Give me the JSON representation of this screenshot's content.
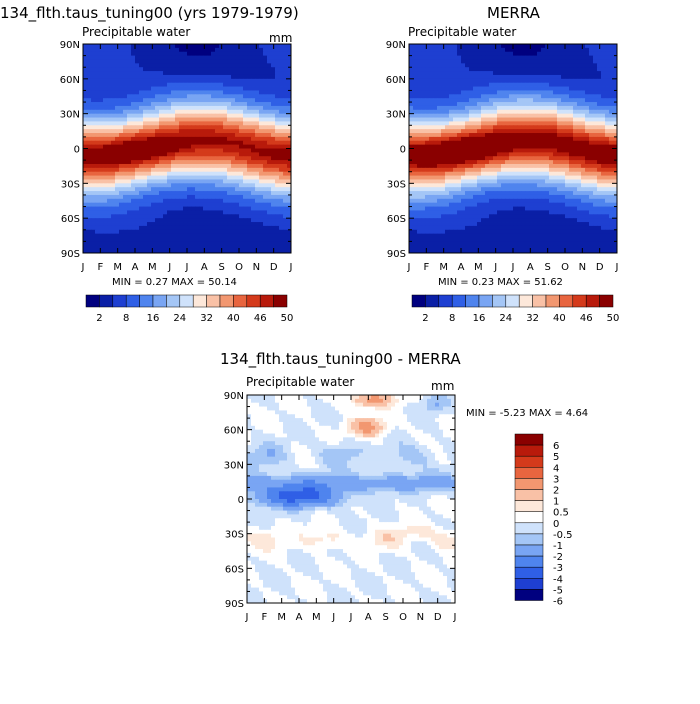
{
  "chart_data": [
    {
      "type": "heatmap",
      "id": "model",
      "title": "134_flth.taus_tuning00 (yrs 1979-1979)",
      "variable": "Precipitable water",
      "units": "mm",
      "xlabels": [
        "J",
        "F",
        "M",
        "A",
        "M",
        "J",
        "J",
        "A",
        "S",
        "O",
        "N",
        "D",
        "J"
      ],
      "ylabels": [
        "90N",
        "60N",
        "30N",
        "0",
        "30S",
        "60S",
        "90S"
      ],
      "stats": "MIN =    0.27 MAX =   50.14",
      "min": 0.27,
      "max": 50.14,
      "colorbar_levels": [
        "2",
        "8",
        "16",
        "24",
        "32",
        "40",
        "46",
        "50"
      ]
    },
    {
      "type": "heatmap",
      "id": "obs",
      "title": "MERRA",
      "variable": "Precipitable water",
      "units": "mm",
      "xlabels": [
        "J",
        "F",
        "M",
        "A",
        "M",
        "J",
        "J",
        "A",
        "S",
        "O",
        "N",
        "D",
        "J"
      ],
      "ylabels": [
        "90N",
        "60N",
        "30N",
        "0",
        "30S",
        "60S",
        "90S"
      ],
      "stats": "MIN =    0.23 MAX =   51.62",
      "min": 0.23,
      "max": 51.62,
      "colorbar_levels": [
        "2",
        "8",
        "16",
        "24",
        "32",
        "40",
        "46",
        "50"
      ]
    },
    {
      "type": "heatmap",
      "id": "diff",
      "title": "134_flth.taus_tuning00 - MERRA",
      "variable": "Precipitable water",
      "units": "mm",
      "xlabels": [
        "J",
        "F",
        "M",
        "A",
        "M",
        "J",
        "J",
        "A",
        "S",
        "O",
        "N",
        "D",
        "J"
      ],
      "ylabels": [
        "90N",
        "60N",
        "30N",
        "0",
        "30S",
        "60S",
        "90S"
      ],
      "stats": "MIN =   -5.23 MAX =    4.64",
      "min": -5.23,
      "max": 4.64,
      "colorbar_levels": [
        "6",
        "5",
        "4",
        "3",
        "2",
        "1",
        "0.5",
        "0",
        "-0.5",
        "-1",
        "-2",
        "-3",
        "-4",
        "-5",
        "-6"
      ]
    }
  ],
  "colors": {
    "seq": [
      "#00007f",
      "#0a1fa6",
      "#1e3fd1",
      "#2f5fe6",
      "#4f84ee",
      "#79a5f3",
      "#a4c6f6",
      "#cfe2fb",
      "#fde8da",
      "#f9c1a6",
      "#f29770",
      "#e8653f",
      "#d43a1b",
      "#b81a0b",
      "#8a0000"
    ],
    "div": [
      "#8a0000",
      "#b81a0b",
      "#d43a1b",
      "#e8653f",
      "#f29770",
      "#f9c1a6",
      "#fde8da",
      "#ffffff",
      "#cfe2fb",
      "#a4c6f6",
      "#79a5f3",
      "#4f84ee",
      "#2f5fe6",
      "#1e3fd1",
      "#00007f"
    ]
  }
}
